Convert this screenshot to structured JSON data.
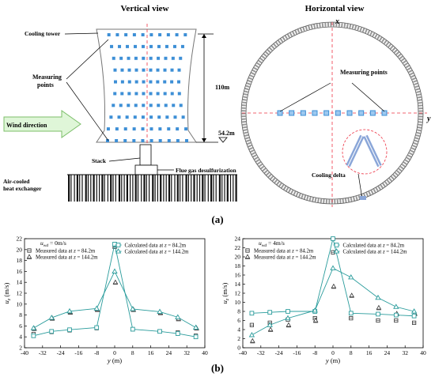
{
  "panel_a": {
    "label": "(a)",
    "vertical_view": {
      "title": "Vertical view",
      "labels": {
        "cooling_tower": "Cooling tower",
        "measuring_points": [
          "Measuring",
          "points"
        ],
        "wind_direction": "Wind direction",
        "height_total": "110m",
        "height_base": "54.2m",
        "stack": "Stack",
        "flue_gas": "Flue gas desulfurization",
        "air_cooled": [
          "Air-cooled",
          "heat exchanger"
        ]
      },
      "grid": {
        "rows": 10,
        "cols": 10
      }
    },
    "horizontal_view": {
      "title": "Horizontal view",
      "axis_x": "x",
      "axis_y": "y",
      "measuring_points": "Measuring points",
      "cooling_delta": "Cooling delta",
      "points_count": 10
    }
  },
  "panel_b": {
    "label": "(b)"
  },
  "chart_data": [
    {
      "type": "line",
      "xlabel": "y (m)",
      "ylabel": "u_z (m/s)",
      "wind_label": "u_wd = 0m/s",
      "xlim": [
        -40,
        40
      ],
      "ylim": [
        2,
        22
      ],
      "xticks": [
        -40,
        -32,
        -24,
        -16,
        -8,
        0,
        8,
        16,
        24,
        32,
        40
      ],
      "yticks": [
        2,
        4,
        6,
        8,
        10,
        12,
        14,
        16,
        18,
        20,
        22
      ],
      "x": [
        -36,
        -28,
        -20,
        -8,
        0,
        8,
        20,
        28,
        36
      ],
      "series": [
        {
          "name": "Measured data at z = 84.2m",
          "kind": "measured-square",
          "values": [
            4.5,
            4.9,
            5.2,
            5.6,
            20.5,
            5.4,
            5.0,
            4.8,
            4.2
          ]
        },
        {
          "name": "Measured data at z = 144.2m",
          "kind": "measured-plus",
          "values": [
            5.5,
            7.4,
            8.5,
            9.0,
            14.0,
            9.0,
            8.4,
            7.3,
            5.6
          ]
        },
        {
          "name": "Calculated data at z = 84.2m",
          "kind": "calc-square",
          "values": [
            4.2,
            5.0,
            5.3,
            5.7,
            21.0,
            5.4,
            5.0,
            4.6,
            4.0
          ]
        },
        {
          "name": "Calculated data at z = 144.2m",
          "kind": "calc-triangle",
          "values": [
            5.6,
            7.5,
            8.7,
            9.2,
            16.0,
            9.1,
            8.6,
            7.6,
            5.7
          ]
        }
      ]
    },
    {
      "type": "line",
      "xlabel": "y (m)",
      "ylabel": "u_z (m/s)",
      "wind_label": "u_wd = 4m/s",
      "xlim": [
        -40,
        40
      ],
      "ylim": [
        0,
        24
      ],
      "xticks": [
        -40,
        -32,
        -24,
        -16,
        -8,
        0,
        8,
        16,
        24,
        32,
        40
      ],
      "yticks": [
        0,
        2,
        4,
        6,
        8,
        10,
        12,
        14,
        16,
        18,
        20,
        22,
        24
      ],
      "x": [
        -36,
        -28,
        -20,
        -8,
        0,
        8,
        20,
        28,
        36
      ],
      "series": [
        {
          "name": "Measured data at z = 84.2m",
          "kind": "measured-square",
          "values": [
            5.0,
            5.5,
            6.2,
            6.5,
            21.0,
            6.5,
            6.0,
            6.0,
            5.5
          ]
        },
        {
          "name": "Measured data at z = 144.2m",
          "kind": "measured-plus",
          "values": [
            1.5,
            4.0,
            5.0,
            6.0,
            13.5,
            11.5,
            8.8,
            7.5,
            7.5
          ]
        },
        {
          "name": "Calculated data at z = 84.2m",
          "kind": "calc-square",
          "values": [
            7.6,
            7.8,
            8.0,
            8.0,
            24.0,
            7.6,
            7.4,
            7.2,
            7.0
          ]
        },
        {
          "name": "Calculated data at z = 144.2m",
          "kind": "calc-triangle",
          "values": [
            2.8,
            5.0,
            6.5,
            8.2,
            17.5,
            15.5,
            11.0,
            9.0,
            8.0
          ]
        }
      ]
    }
  ]
}
